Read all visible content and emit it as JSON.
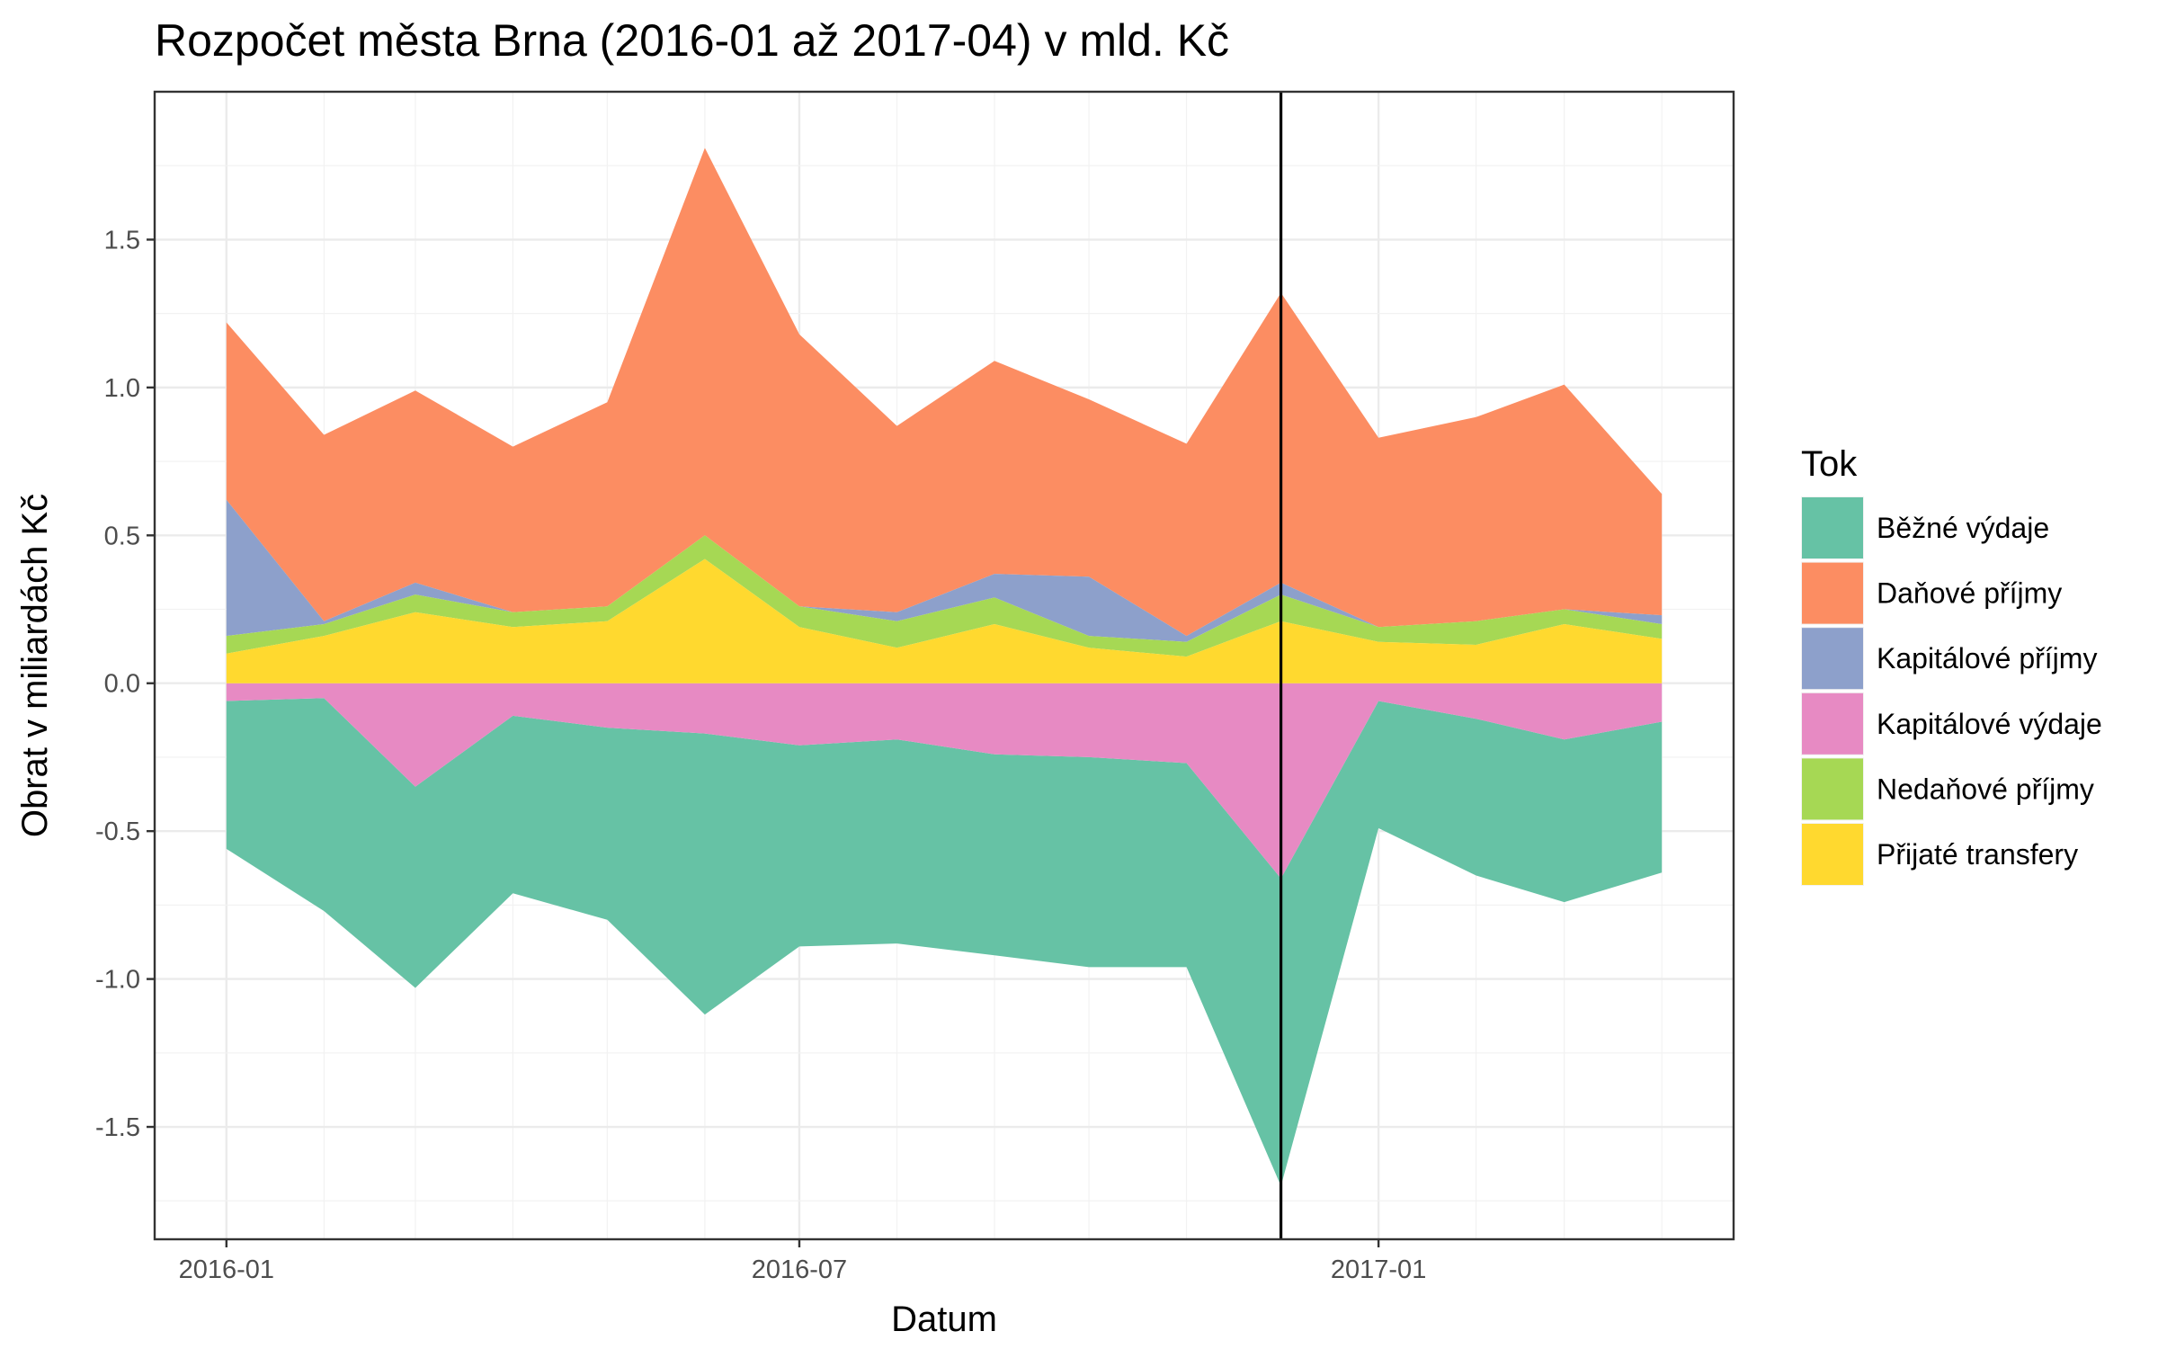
{
  "chart_data": {
    "type": "area",
    "title": "Rozpočet města Brna (2016-01 až 2017-04) v mld. Kč",
    "xlabel": "Datum",
    "ylabel": "Obrat v miliardách Kč",
    "x": [
      "2016-01",
      "2016-02",
      "2016-03",
      "2016-04",
      "2016-05",
      "2016-06",
      "2016-07",
      "2016-08",
      "2016-09",
      "2016-10",
      "2016-11",
      "2016-12",
      "2017-01",
      "2017-02",
      "2017-03",
      "2017-04"
    ],
    "x_ticks": [
      {
        "date": "2016-01",
        "label": "2016-01"
      },
      {
        "date": "2016-07",
        "label": "2016-07"
      },
      {
        "date": "2017-01",
        "label": "2017-01"
      }
    ],
    "ylim": [
      -1.88,
      2.0
    ],
    "y_ticks": [
      {
        "value": 1.5,
        "label": "1.5"
      },
      {
        "value": 1.0,
        "label": "1.0"
      },
      {
        "value": 0.5,
        "label": "0.5"
      },
      {
        "value": 0.0,
        "label": "0.0"
      },
      {
        "value": -0.5,
        "label": "-0.5"
      },
      {
        "value": -1.0,
        "label": "-1.0"
      },
      {
        "value": -1.5,
        "label": "-1.5"
      }
    ],
    "grid": true,
    "stacked": true,
    "reference_line_x": "2016-12",
    "legend": {
      "title": "Tok",
      "position": "right"
    },
    "series": [
      {
        "name": "Běžné výdaje",
        "color": "#66c2a5",
        "values": [
          -0.5,
          -0.72,
          -0.68,
          -0.6,
          -0.65,
          -0.95,
          -0.68,
          -0.69,
          -0.68,
          -0.71,
          -0.69,
          -1.04,
          -0.43,
          -0.53,
          -0.55,
          -0.51
        ]
      },
      {
        "name": "Daňové příjmy",
        "color": "#fc8d62",
        "values": [
          0.6,
          0.63,
          0.65,
          0.56,
          0.69,
          1.31,
          0.92,
          0.63,
          0.72,
          0.6,
          0.65,
          0.98,
          0.64,
          0.69,
          0.76,
          0.41
        ]
      },
      {
        "name": "Kapitálové příjmy",
        "color": "#8da0cb",
        "values": [
          0.46,
          0.01,
          0.04,
          0.0,
          0.0,
          0.0,
          0.0,
          0.03,
          0.08,
          0.2,
          0.02,
          0.04,
          0.0,
          0.0,
          0.0,
          0.03
        ]
      },
      {
        "name": "Kapitálové výdaje",
        "color": "#e78ac3",
        "values": [
          -0.06,
          -0.05,
          -0.35,
          -0.11,
          -0.15,
          -0.17,
          -0.21,
          -0.19,
          -0.24,
          -0.25,
          -0.27,
          -0.66,
          -0.06,
          -0.12,
          -0.19,
          -0.13
        ]
      },
      {
        "name": "Nedaňové příjmy",
        "color": "#a6d854",
        "values": [
          0.06,
          0.04,
          0.06,
          0.05,
          0.05,
          0.08,
          0.07,
          0.09,
          0.09,
          0.04,
          0.05,
          0.09,
          0.05,
          0.08,
          0.05,
          0.05
        ]
      },
      {
        "name": "Přijaté transfery",
        "color": "#ffd92f",
        "values": [
          0.1,
          0.16,
          0.24,
          0.19,
          0.21,
          0.42,
          0.19,
          0.12,
          0.2,
          0.12,
          0.09,
          0.21,
          0.14,
          0.13,
          0.2,
          0.15
        ]
      }
    ]
  }
}
